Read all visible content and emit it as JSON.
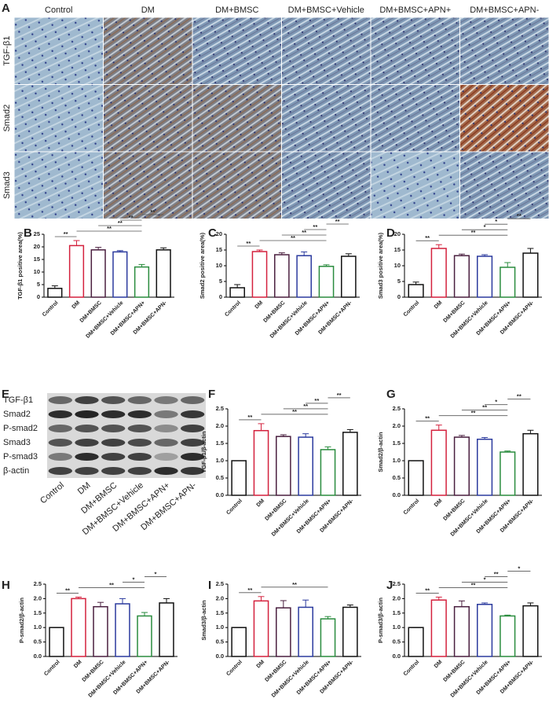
{
  "panel_a": {
    "label": "A",
    "columns": [
      "Control",
      "DM",
      "DM+BMSC",
      "DM+BMSC+Vehicle",
      "DM+BMSC+APN+",
      "DM+BMSC+APN-"
    ],
    "rows": [
      "TGF-β1",
      "Smad2",
      "Smad3"
    ]
  },
  "panel_e": {
    "label": "E",
    "rows": [
      "TGF-β1",
      "Smad2",
      "P-smad2",
      "Smad3",
      "P-smad3",
      "β-actin"
    ],
    "columns": [
      "Control",
      "DM",
      "DM+BMSC",
      "DM+BMSC+Vehicle",
      "DM+BMSC+APN+",
      "DM+BMSC+APN-"
    ]
  },
  "chart_data": [
    {
      "type": "bar",
      "label": "B",
      "y_label": "TGF-β1 positive area(%)",
      "categories": [
        "Control",
        "DM",
        "DM+BMSC",
        "DM+BMSC+Vehicle",
        "DM+BMSC+APN+",
        "DM+BMSC+APN-"
      ],
      "values": [
        3.5,
        20.5,
        18.8,
        18,
        12,
        18.8
      ],
      "errors": [
        1,
        2,
        1,
        0.5,
        1,
        0.8
      ],
      "colors": [
        "#111111",
        "#d4213d",
        "#4a1f3f",
        "#2b3a9e",
        "#2a8c3e",
        "#111111"
      ],
      "ylim": [
        0,
        25
      ],
      "yticks": [
        0,
        5,
        10,
        15,
        20,
        25
      ],
      "significance": [
        {
          "from": 0,
          "to": 1,
          "label": "**"
        },
        {
          "from": 1,
          "to": 4,
          "label": "**"
        },
        {
          "from": 2,
          "to": 4,
          "label": "**"
        },
        {
          "from": 3,
          "to": 4,
          "label": "**"
        },
        {
          "from": 4,
          "to": 5,
          "label": "**"
        }
      ]
    },
    {
      "type": "bar",
      "label": "C",
      "y_label": "Smad2 positive area(%)",
      "categories": [
        "Control",
        "DM",
        "DM+BMSC",
        "DM+BMSC+Vehicle",
        "DM+BMSC+APN+",
        "DM+BMSC+APN-"
      ],
      "values": [
        3,
        14.5,
        13.5,
        13.2,
        9.8,
        13
      ],
      "errors": [
        1,
        0.5,
        0.6,
        1.2,
        0.5,
        0.8
      ],
      "colors": [
        "#111111",
        "#d4213d",
        "#4a1f3f",
        "#2b3a9e",
        "#2a8c3e",
        "#111111"
      ],
      "ylim": [
        0,
        20
      ],
      "yticks": [
        0,
        5,
        10,
        15,
        20
      ],
      "significance": [
        {
          "from": 0,
          "to": 1,
          "label": "**"
        },
        {
          "from": 1,
          "to": 4,
          "label": "**"
        },
        {
          "from": 2,
          "to": 4,
          "label": "**"
        },
        {
          "from": 3,
          "to": 4,
          "label": "**"
        },
        {
          "from": 4,
          "to": 5,
          "label": "**"
        }
      ]
    },
    {
      "type": "bar",
      "label": "D",
      "y_label": "Smad3 positive area(%)",
      "categories": [
        "Control",
        "DM",
        "DM+BMSC",
        "DM+BMSC+Vehicle",
        "DM+BMSC+APN+",
        "DM+BMSC+APN-"
      ],
      "values": [
        4,
        15.5,
        13.2,
        13,
        9.5,
        14
      ],
      "errors": [
        0.8,
        1.2,
        0.5,
        0.5,
        1.5,
        1.5
      ],
      "colors": [
        "#111111",
        "#d4213d",
        "#4a1f3f",
        "#2b3a9e",
        "#2a8c3e",
        "#111111"
      ],
      "ylim": [
        0,
        20
      ],
      "yticks": [
        0,
        5,
        10,
        15,
        20
      ],
      "significance": [
        {
          "from": 0,
          "to": 1,
          "label": "**"
        },
        {
          "from": 1,
          "to": 4,
          "label": "**"
        },
        {
          "from": 2,
          "to": 4,
          "label": "*"
        },
        {
          "from": 3,
          "to": 4,
          "label": "*"
        },
        {
          "from": 4,
          "to": 5,
          "label": "**"
        }
      ]
    },
    {
      "type": "bar",
      "label": "F",
      "y_label": "TGF-β1/β-actin",
      "categories": [
        "Control",
        "DM",
        "DM+BMSC",
        "DM+BMSC+Vehicle",
        "DM+BMSC+APN+",
        "DM+BMSC+APN-"
      ],
      "values": [
        1,
        1.87,
        1.7,
        1.68,
        1.32,
        1.82
      ],
      "errors": [
        0,
        0.2,
        0.05,
        0.1,
        0.08,
        0.08
      ],
      "colors": [
        "#111111",
        "#d4213d",
        "#4a1f3f",
        "#2b3a9e",
        "#2a8c3e",
        "#111111"
      ],
      "ylim": [
        0,
        2.5
      ],
      "yticks": [
        {
          "value": 0,
          "label": "0.0"
        },
        0.5,
        {
          "value": 1,
          "label": "1.0"
        },
        1.5,
        {
          "value": 2,
          "label": "2.0"
        },
        2.5
      ],
      "significance": [
        {
          "from": 0,
          "to": 1,
          "label": "**"
        },
        {
          "from": 1,
          "to": 4,
          "label": "**"
        },
        {
          "from": 2,
          "to": 4,
          "label": "**"
        },
        {
          "from": 3,
          "to": 4,
          "label": "**"
        },
        {
          "from": 4,
          "to": 5,
          "label": "**"
        }
      ]
    },
    {
      "type": "bar",
      "label": "G",
      "y_label": "Smad2/β-actin",
      "categories": [
        "Control",
        "DM",
        "DM+BMSC",
        "DM+BMSC+Vehicle",
        "DM+BMSC+APN+",
        "DM+BMSC+APN-"
      ],
      "values": [
        1,
        1.88,
        1.68,
        1.62,
        1.25,
        1.78
      ],
      "errors": [
        0,
        0.15,
        0.05,
        0.05,
        0.03,
        0.1
      ],
      "colors": [
        "#111111",
        "#d4213d",
        "#4a1f3f",
        "#2b3a9e",
        "#2a8c3e",
        "#111111"
      ],
      "ylim": [
        0,
        2.5
      ],
      "yticks": [
        {
          "value": 0,
          "label": "0.0"
        },
        0.5,
        {
          "value": 1,
          "label": "1.0"
        },
        1.5,
        {
          "value": 2,
          "label": "2.0"
        },
        2.5
      ],
      "significance": [
        {
          "from": 0,
          "to": 1,
          "label": "**"
        },
        {
          "from": 1,
          "to": 4,
          "label": "**"
        },
        {
          "from": 2,
          "to": 4,
          "label": "**"
        },
        {
          "from": 3,
          "to": 4,
          "label": "*"
        },
        {
          "from": 4,
          "to": 5,
          "label": "**"
        }
      ]
    },
    {
      "type": "bar",
      "label": "H",
      "y_label": "P-smad2/β-actin",
      "categories": [
        "Control",
        "DM",
        "DM+BMSC",
        "DM+BMSC+Vehicle",
        "DM+BMSC+APN+",
        "DM+BMSC+APN-"
      ],
      "values": [
        1,
        2,
        1.72,
        1.82,
        1.4,
        1.85
      ],
      "errors": [
        0,
        0.05,
        0.15,
        0.18,
        0.12,
        0.15
      ],
      "colors": [
        "#111111",
        "#d4213d",
        "#4a1f3f",
        "#2b3a9e",
        "#2a8c3e",
        "#111111"
      ],
      "ylim": [
        0,
        2.5
      ],
      "yticks": [
        {
          "value": 0,
          "label": "0.0"
        },
        0.5,
        {
          "value": 1,
          "label": "1.0"
        },
        1.5,
        {
          "value": 2,
          "label": "2.0"
        },
        2.5
      ],
      "significance": [
        {
          "from": 0,
          "to": 1,
          "label": "**"
        },
        {
          "from": 1,
          "to": 4,
          "label": "**"
        },
        {
          "from": 3,
          "to": 4,
          "label": "*"
        },
        {
          "from": 4,
          "to": 5,
          "label": "*"
        }
      ]
    },
    {
      "type": "bar",
      "label": "I",
      "y_label": "Smad3/β-actin",
      "categories": [
        "Control",
        "DM",
        "DM+BMSC",
        "DM+BMSC+Vehicle",
        "DM+BMSC+APN+",
        "DM+BMSC+APN-"
      ],
      "values": [
        1,
        1.92,
        1.68,
        1.7,
        1.3,
        1.7
      ],
      "errors": [
        0,
        0.15,
        0.25,
        0.25,
        0.08,
        0.08
      ],
      "colors": [
        "#111111",
        "#d4213d",
        "#4a1f3f",
        "#2b3a9e",
        "#2a8c3e",
        "#111111"
      ],
      "ylim": [
        0,
        2.5
      ],
      "yticks": [
        {
          "value": 0,
          "label": "0.0"
        },
        0.5,
        {
          "value": 1,
          "label": "1.0"
        },
        1.5,
        {
          "value": 2,
          "label": "2.0"
        },
        2.5
      ],
      "significance": [
        {
          "from": 0,
          "to": 1,
          "label": "**"
        },
        {
          "from": 1,
          "to": 4,
          "label": "**"
        }
      ]
    },
    {
      "type": "bar",
      "label": "J",
      "y_label": "P-smad3/β-actin",
      "categories": [
        "Control",
        "DM",
        "DM+BMSC",
        "DM+BMSC+Vehicle",
        "DM+BMSC+APN+",
        "DM+BMSC+APN-"
      ],
      "values": [
        1,
        1.95,
        1.72,
        1.8,
        1.4,
        1.75
      ],
      "errors": [
        0,
        0.1,
        0.2,
        0.05,
        0.03,
        0.1
      ],
      "colors": [
        "#111111",
        "#d4213d",
        "#4a1f3f",
        "#2b3a9e",
        "#2a8c3e",
        "#111111"
      ],
      "ylim": [
        0,
        2.5
      ],
      "yticks": [
        {
          "value": 0,
          "label": "0.0"
        },
        0.5,
        {
          "value": 1,
          "label": "1.0"
        },
        1.5,
        {
          "value": 2,
          "label": "2.0"
        },
        2.5
      ],
      "significance": [
        {
          "from": 0,
          "to": 1,
          "label": "**"
        },
        {
          "from": 1,
          "to": 4,
          "label": "**"
        },
        {
          "from": 2,
          "to": 4,
          "label": "*"
        },
        {
          "from": 3,
          "to": 4,
          "label": "**"
        },
        {
          "from": 4,
          "to": 5,
          "label": "*"
        }
      ]
    }
  ]
}
